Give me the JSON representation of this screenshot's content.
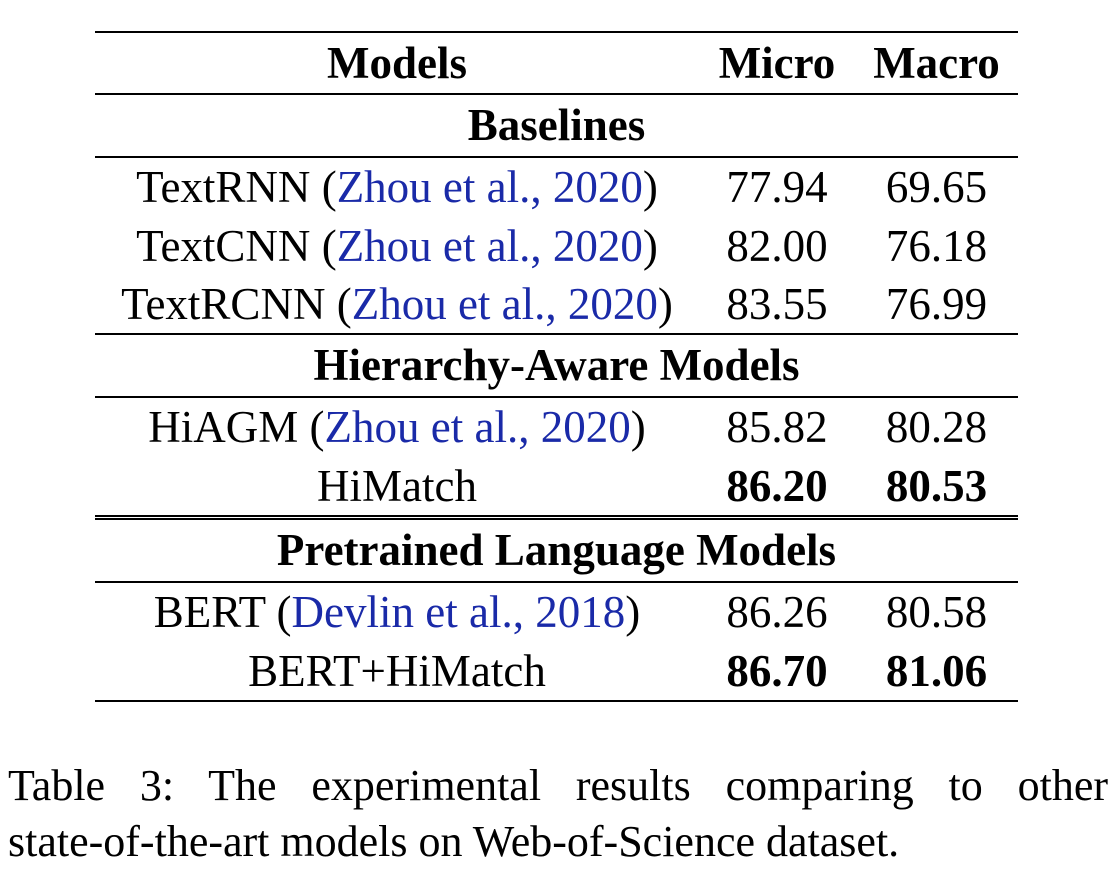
{
  "table": {
    "header": {
      "model": "Models",
      "micro": "Micro",
      "macro": "Macro"
    },
    "sections": [
      {
        "title": "Baselines",
        "rows": [
          {
            "name": "TextRNN",
            "open": " (",
            "cite": "Zhou et al., 2020",
            "close": ")",
            "micro": "77.94",
            "macro": "69.65",
            "bold": false
          },
          {
            "name": "TextCNN",
            "open": " (",
            "cite": "Zhou et al., 2020",
            "close": ")",
            "micro": "82.00",
            "macro": "76.18",
            "bold": false
          },
          {
            "name": "TextRCNN",
            "open": " (",
            "cite": "Zhou et al., 2020",
            "close": ")",
            "micro": "83.55",
            "macro": "76.99",
            "bold": false
          }
        ]
      },
      {
        "title": "Hierarchy-Aware Models",
        "rows": [
          {
            "name": "HiAGM",
            "open": " (",
            "cite": "Zhou et al., 2020",
            "close": ")",
            "micro": "85.82",
            "macro": "80.28",
            "bold": false
          },
          {
            "name": "HiMatch",
            "open": "",
            "cite": "",
            "close": "",
            "micro": "86.20",
            "macro": "80.53",
            "bold": true
          }
        ]
      },
      {
        "title": "Pretrained Language Models",
        "rows": [
          {
            "name": "BERT",
            "open": " (",
            "cite": "Devlin et al., 2018",
            "close": ")",
            "micro": "86.26",
            "macro": "80.58",
            "bold": false
          },
          {
            "name": "BERT+HiMatch",
            "open": "",
            "cite": "",
            "close": "",
            "micro": "86.70",
            "macro": "81.06",
            "bold": true
          }
        ]
      }
    ]
  },
  "caption": {
    "line1": "Table 3: The experimental results comparing to other",
    "line2": "state-of-the-art models on Web-of-Science dataset."
  },
  "colors": {
    "citation": "#1a2aa8",
    "text": "#000000"
  }
}
